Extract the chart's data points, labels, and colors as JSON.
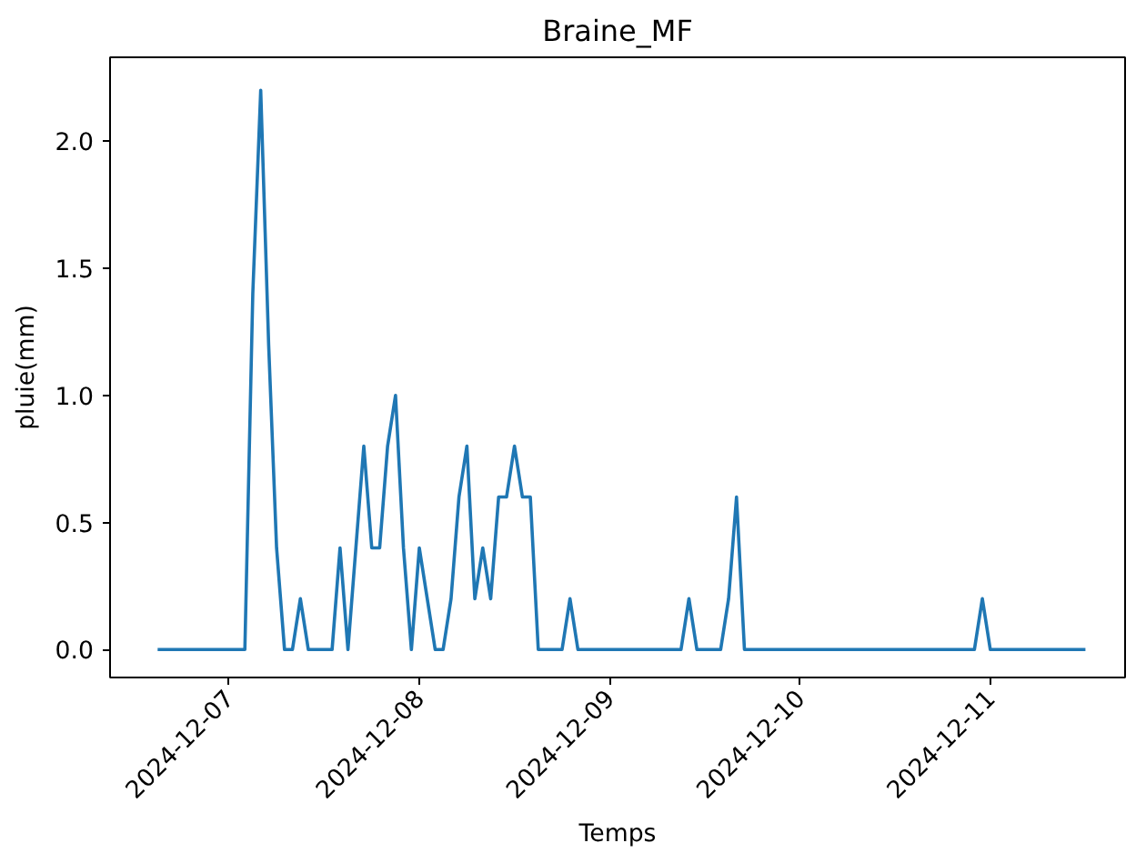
{
  "chart_data": {
    "type": "line",
    "title": "Braine_MF",
    "xlabel": "Temps",
    "ylabel": "pluie(mm)",
    "x": [
      "2024-12-06T15:00",
      "2024-12-06T16:00",
      "2024-12-06T17:00",
      "2024-12-06T18:00",
      "2024-12-06T19:00",
      "2024-12-06T20:00",
      "2024-12-06T21:00",
      "2024-12-06T22:00",
      "2024-12-06T23:00",
      "2024-12-07T00:00",
      "2024-12-07T01:00",
      "2024-12-07T02:00",
      "2024-12-07T03:00",
      "2024-12-07T04:00",
      "2024-12-07T05:00",
      "2024-12-07T06:00",
      "2024-12-07T07:00",
      "2024-12-07T08:00",
      "2024-12-07T09:00",
      "2024-12-07T10:00",
      "2024-12-07T11:00",
      "2024-12-07T12:00",
      "2024-12-07T13:00",
      "2024-12-07T14:00",
      "2024-12-07T15:00",
      "2024-12-07T16:00",
      "2024-12-07T17:00",
      "2024-12-07T18:00",
      "2024-12-07T19:00",
      "2024-12-07T20:00",
      "2024-12-07T21:00",
      "2024-12-07T22:00",
      "2024-12-07T23:00",
      "2024-12-08T00:00",
      "2024-12-08T01:00",
      "2024-12-08T02:00",
      "2024-12-08T03:00",
      "2024-12-08T04:00",
      "2024-12-08T05:00",
      "2024-12-08T06:00",
      "2024-12-08T07:00",
      "2024-12-08T08:00",
      "2024-12-08T09:00",
      "2024-12-08T10:00",
      "2024-12-08T11:00",
      "2024-12-08T12:00",
      "2024-12-08T13:00",
      "2024-12-08T14:00",
      "2024-12-08T15:00",
      "2024-12-08T16:00",
      "2024-12-08T17:00",
      "2024-12-08T18:00",
      "2024-12-08T19:00",
      "2024-12-08T20:00",
      "2024-12-08T21:00",
      "2024-12-08T22:00",
      "2024-12-08T23:00",
      "2024-12-09T00:00",
      "2024-12-09T01:00",
      "2024-12-09T02:00",
      "2024-12-09T03:00",
      "2024-12-09T04:00",
      "2024-12-09T05:00",
      "2024-12-09T06:00",
      "2024-12-09T07:00",
      "2024-12-09T08:00",
      "2024-12-09T09:00",
      "2024-12-09T10:00",
      "2024-12-09T11:00",
      "2024-12-09T12:00",
      "2024-12-09T13:00",
      "2024-12-09T14:00",
      "2024-12-09T15:00",
      "2024-12-09T16:00",
      "2024-12-09T17:00",
      "2024-12-09T18:00",
      "2024-12-09T19:00",
      "2024-12-09T20:00",
      "2024-12-09T21:00",
      "2024-12-09T22:00",
      "2024-12-09T23:00",
      "2024-12-10T00:00",
      "2024-12-10T01:00",
      "2024-12-10T02:00",
      "2024-12-10T03:00",
      "2024-12-10T04:00",
      "2024-12-10T05:00",
      "2024-12-10T06:00",
      "2024-12-10T07:00",
      "2024-12-10T08:00",
      "2024-12-10T09:00",
      "2024-12-10T10:00",
      "2024-12-10T11:00",
      "2024-12-10T12:00",
      "2024-12-10T13:00",
      "2024-12-10T14:00",
      "2024-12-10T15:00",
      "2024-12-10T16:00",
      "2024-12-10T17:00",
      "2024-12-10T18:00",
      "2024-12-10T19:00",
      "2024-12-10T20:00",
      "2024-12-10T21:00",
      "2024-12-10T22:00",
      "2024-12-10T23:00",
      "2024-12-11T00:00",
      "2024-12-11T01:00",
      "2024-12-11T02:00",
      "2024-12-11T03:00",
      "2024-12-11T04:00",
      "2024-12-11T05:00",
      "2024-12-11T06:00",
      "2024-12-11T07:00",
      "2024-12-11T08:00",
      "2024-12-11T09:00",
      "2024-12-11T10:00",
      "2024-12-11T11:00",
      "2024-12-11T12:00"
    ],
    "series": [
      {
        "color": "#1f77b4",
        "values": [
          0,
          0,
          0,
          0,
          0,
          0,
          0,
          0,
          0,
          0,
          0,
          0,
          1.4,
          2.2,
          1.2,
          0.4,
          0,
          0,
          0.2,
          0,
          0,
          0,
          0,
          0.4,
          0,
          0.4,
          0.8,
          0.4,
          0.4,
          0.8,
          1.0,
          0.4,
          0,
          0.4,
          0.2,
          0,
          0,
          0.2,
          0.6,
          0.8,
          0.2,
          0.4,
          0.2,
          0.6,
          0.6,
          0.8,
          0.6,
          0.6,
          0,
          0,
          0,
          0,
          0.2,
          0,
          0,
          0,
          0,
          0,
          0,
          0,
          0,
          0,
          0,
          0,
          0,
          0,
          0,
          0.2,
          0,
          0,
          0,
          0,
          0.2,
          0.6,
          0,
          0,
          0,
          0,
          0,
          0,
          0,
          0,
          0,
          0,
          0,
          0,
          0,
          0,
          0,
          0,
          0,
          0,
          0,
          0,
          0,
          0,
          0,
          0,
          0,
          0,
          0,
          0,
          0,
          0,
          0.2,
          0,
          0,
          0,
          0,
          0,
          0,
          0,
          0,
          0,
          0,
          0,
          0,
          0
        ]
      }
    ],
    "xlim": [
      "2024-12-06T09:00",
      "2024-12-11T17:00"
    ],
    "xticks": [
      {
        "value": "2024-12-07",
        "label": "2024-12-07"
      },
      {
        "value": "2024-12-08",
        "label": "2024-12-08"
      },
      {
        "value": "2024-12-09",
        "label": "2024-12-09"
      },
      {
        "value": "2024-12-10",
        "label": "2024-12-10"
      },
      {
        "value": "2024-12-11",
        "label": "2024-12-11"
      }
    ],
    "ylim": [
      -0.11,
      2.33
    ],
    "yticks": [
      {
        "value": 0,
        "label": "0.0"
      },
      {
        "value": 0.5,
        "label": "0.5"
      },
      {
        "value": 1,
        "label": "1.0"
      },
      {
        "value": 1.5,
        "label": "1.5"
      },
      {
        "value": 2,
        "label": "2.0"
      }
    ],
    "grid": false,
    "marker": "none",
    "line_style": "solid"
  }
}
